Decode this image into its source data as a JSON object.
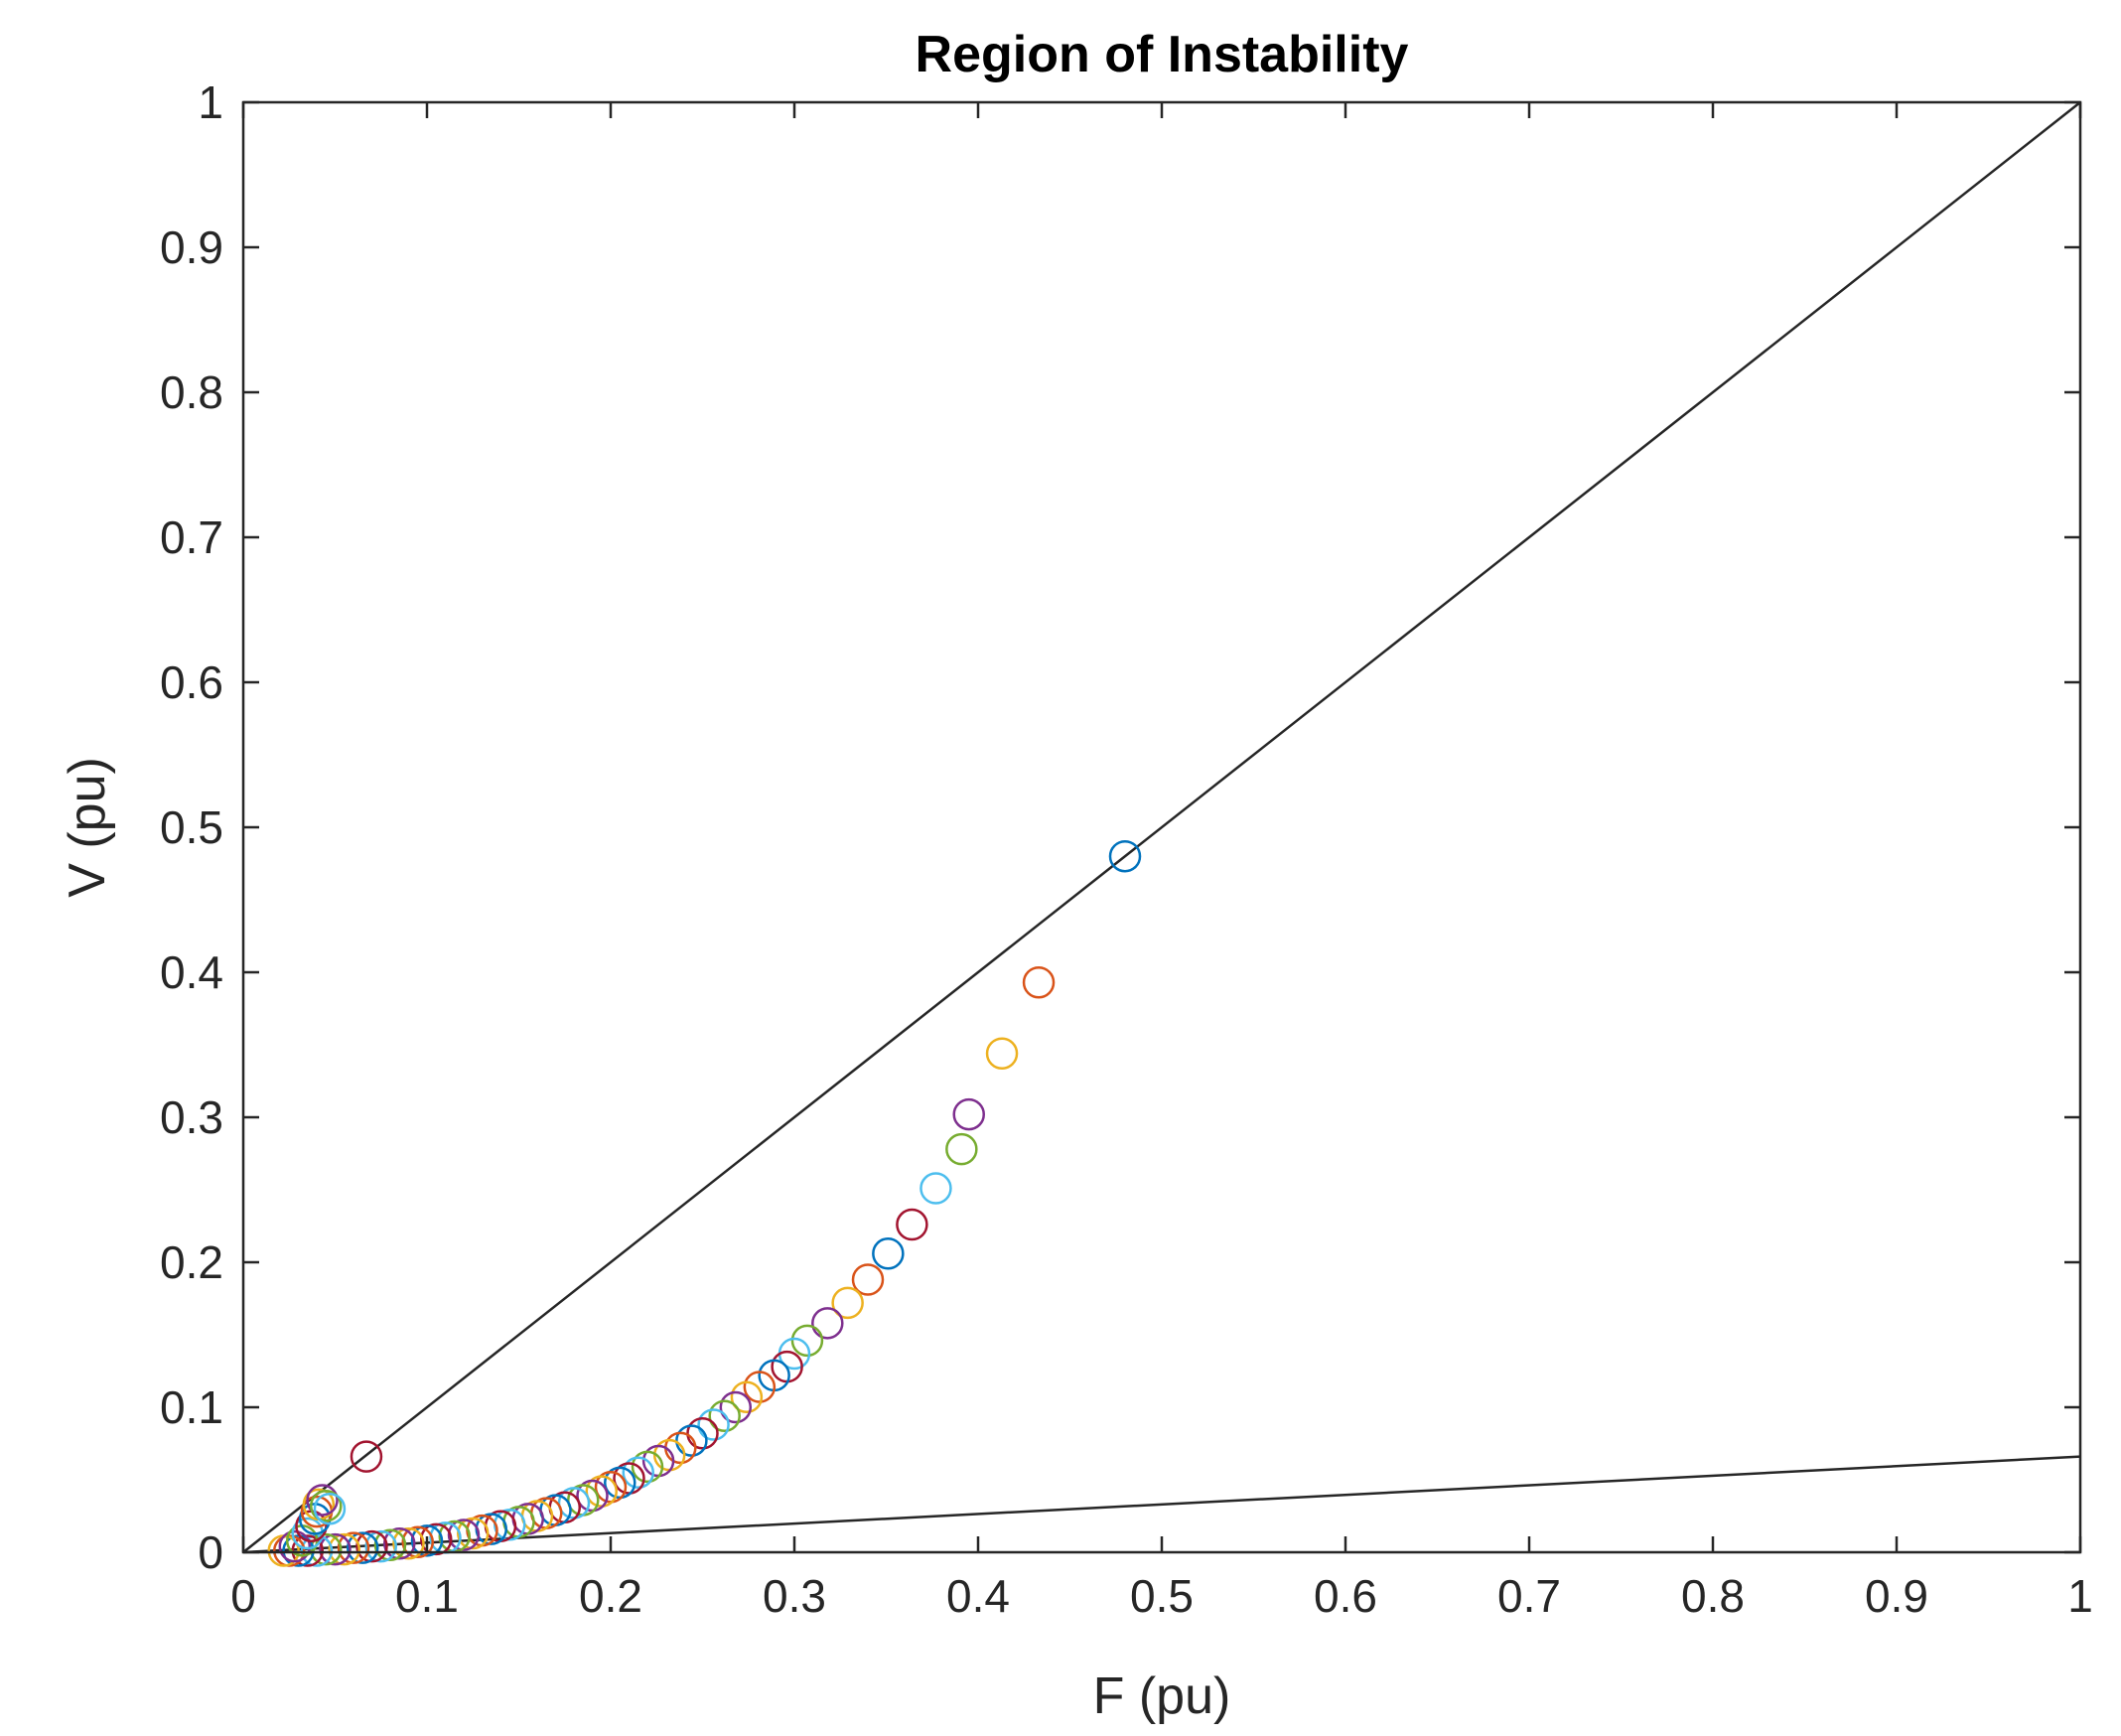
{
  "chart_data": {
    "type": "scatter",
    "title": "Region of Instability",
    "xlabel": "F (pu)",
    "ylabel": "V (pu)",
    "xlim": [
      0,
      1
    ],
    "ylim": [
      0,
      1
    ],
    "xticks": [
      "0",
      "0.1",
      "0.2",
      "0.3",
      "0.4",
      "0.5",
      "0.6",
      "0.7",
      "0.8",
      "0.9",
      "1"
    ],
    "yticks": [
      "0",
      "0.1",
      "0.2",
      "0.3",
      "0.4",
      "0.5",
      "0.6",
      "0.7",
      "0.8",
      "0.9",
      "1"
    ],
    "grid": false,
    "legend": "none",
    "marker": "open-circle",
    "palette": [
      "#0072BD",
      "#D95319",
      "#EDB120",
      "#7E2F8E",
      "#77AC30",
      "#4DBEEE",
      "#A2142F"
    ],
    "lines": [
      {
        "x": [
          0,
          1
        ],
        "y": [
          0,
          1
        ],
        "color": "#262626"
      },
      {
        "x": [
          0,
          1
        ],
        "y": [
          0,
          0.066
        ],
        "color": "#262626"
      }
    ],
    "points": [
      {
        "x": 0.48,
        "y": 0.48
      },
      {
        "x": 0.433,
        "y": 0.393
      },
      {
        "x": 0.413,
        "y": 0.344
      },
      {
        "x": 0.395,
        "y": 0.302
      },
      {
        "x": 0.391,
        "y": 0.278
      },
      {
        "x": 0.377,
        "y": 0.251
      },
      {
        "x": 0.364,
        "y": 0.226
      },
      {
        "x": 0.351,
        "y": 0.206
      },
      {
        "x": 0.34,
        "y": 0.188
      },
      {
        "x": 0.329,
        "y": 0.172
      },
      {
        "x": 0.318,
        "y": 0.158
      },
      {
        "x": 0.307,
        "y": 0.146
      },
      {
        "x": 0.3,
        "y": 0.137
      },
      {
        "x": 0.296,
        "y": 0.128
      },
      {
        "x": 0.289,
        "y": 0.122
      },
      {
        "x": 0.281,
        "y": 0.114
      },
      {
        "x": 0.274,
        "y": 0.107
      },
      {
        "x": 0.268,
        "y": 0.1
      },
      {
        "x": 0.262,
        "y": 0.094
      },
      {
        "x": 0.256,
        "y": 0.088
      },
      {
        "x": 0.25,
        "y": 0.082
      },
      {
        "x": 0.244,
        "y": 0.077
      },
      {
        "x": 0.238,
        "y": 0.072
      },
      {
        "x": 0.232,
        "y": 0.067
      },
      {
        "x": 0.226,
        "y": 0.063
      },
      {
        "x": 0.22,
        "y": 0.059
      },
      {
        "x": 0.215,
        "y": 0.055
      },
      {
        "x": 0.21,
        "y": 0.051
      },
      {
        "x": 0.205,
        "y": 0.048
      },
      {
        "x": 0.2,
        "y": 0.045
      },
      {
        "x": 0.195,
        "y": 0.042
      },
      {
        "x": 0.19,
        "y": 0.039
      },
      {
        "x": 0.185,
        "y": 0.036
      },
      {
        "x": 0.18,
        "y": 0.034
      },
      {
        "x": 0.175,
        "y": 0.031
      },
      {
        "x": 0.17,
        "y": 0.029
      },
      {
        "x": 0.165,
        "y": 0.027
      },
      {
        "x": 0.16,
        "y": 0.025
      },
      {
        "x": 0.155,
        "y": 0.023
      },
      {
        "x": 0.15,
        "y": 0.021
      },
      {
        "x": 0.145,
        "y": 0.019
      },
      {
        "x": 0.14,
        "y": 0.018
      },
      {
        "x": 0.135,
        "y": 0.016
      },
      {
        "x": 0.13,
        "y": 0.015
      },
      {
        "x": 0.125,
        "y": 0.013
      },
      {
        "x": 0.12,
        "y": 0.012
      },
      {
        "x": 0.115,
        "y": 0.011
      },
      {
        "x": 0.11,
        "y": 0.01
      },
      {
        "x": 0.105,
        "y": 0.009
      },
      {
        "x": 0.1,
        "y": 0.008
      },
      {
        "x": 0.095,
        "y": 0.007
      },
      {
        "x": 0.09,
        "y": 0.006
      },
      {
        "x": 0.085,
        "y": 0.006
      },
      {
        "x": 0.08,
        "y": 0.005
      },
      {
        "x": 0.075,
        "y": 0.004
      },
      {
        "x": 0.07,
        "y": 0.004
      },
      {
        "x": 0.065,
        "y": 0.003
      },
      {
        "x": 0.06,
        "y": 0.003
      },
      {
        "x": 0.055,
        "y": 0.002
      },
      {
        "x": 0.05,
        "y": 0.002
      },
      {
        "x": 0.045,
        "y": 0.002
      },
      {
        "x": 0.04,
        "y": 0.001
      },
      {
        "x": 0.035,
        "y": 0.001
      },
      {
        "x": 0.03,
        "y": 0.001
      },
      {
        "x": 0.025,
        "y": 0.001
      },
      {
        "x": 0.022,
        "y": 0.001
      },
      {
        "x": 0.028,
        "y": 0.004
      },
      {
        "x": 0.032,
        "y": 0.008
      },
      {
        "x": 0.035,
        "y": 0.013
      },
      {
        "x": 0.037,
        "y": 0.018
      },
      {
        "x": 0.039,
        "y": 0.023
      },
      {
        "x": 0.04,
        "y": 0.028
      },
      {
        "x": 0.041,
        "y": 0.033
      },
      {
        "x": 0.043,
        "y": 0.036
      },
      {
        "x": 0.045,
        "y": 0.032
      },
      {
        "x": 0.047,
        "y": 0.03
      },
      {
        "x": 0.067,
        "y": 0.066
      }
    ]
  }
}
